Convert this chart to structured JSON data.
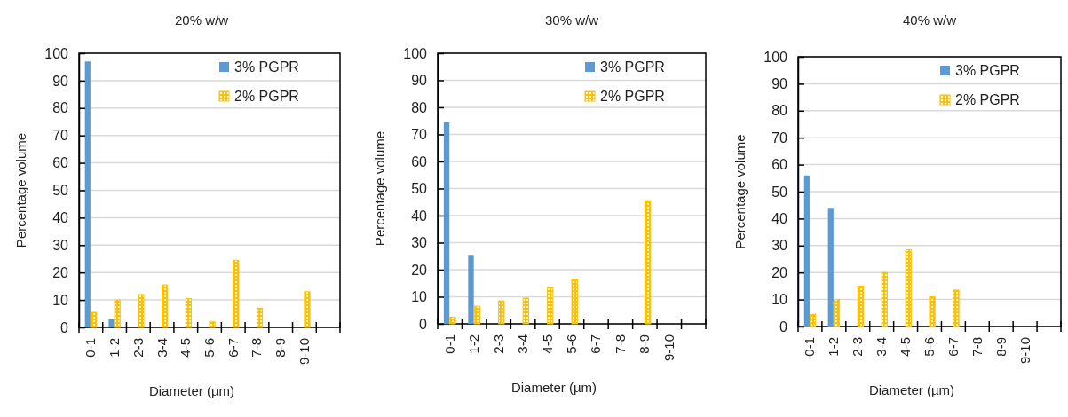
{
  "chart_data": [
    {
      "type": "bar",
      "title": "20% w/w",
      "xlabel": "Diameter (µm)",
      "ylabel": "Percentage volume",
      "categories": [
        "0-1",
        "1-2",
        "2-3",
        "3-4",
        "4-5",
        "5-6",
        "6-7",
        "7-8",
        "8-9",
        "9-10",
        null
      ],
      "series": [
        {
          "name": "3% PGPR",
          "color": "#5b9bd5",
          "values": [
            97,
            3,
            null,
            null,
            null,
            null,
            null,
            null,
            null,
            null,
            null
          ]
        },
        {
          "name": "2% PGPR",
          "color": "#ffc000",
          "values": [
            5.5,
            10,
            12,
            15.5,
            10.5,
            2,
            24.5,
            7,
            null,
            13,
            null
          ]
        }
      ],
      "ylim": [
        0,
        100
      ],
      "yticks": [
        0,
        10,
        20,
        30,
        40,
        50,
        60,
        70,
        80,
        90,
        100
      ],
      "grid": "y",
      "legend": "top right"
    },
    {
      "type": "bar",
      "title": "30% w/w",
      "xlabel": "Diameter (µm)",
      "ylabel": "Percentage volume",
      "categories": [
        "0-1",
        "1-2",
        "2-3",
        "3-4",
        "4-5",
        "5-6",
        "6-7",
        "7-8",
        "8-9",
        "9-10",
        null
      ],
      "series": [
        {
          "name": "3% PGPR",
          "color": "#5b9bd5",
          "values": [
            74.5,
            25.5,
            null,
            null,
            null,
            null,
            null,
            null,
            null,
            null,
            null
          ]
        },
        {
          "name": "2% PGPR",
          "color": "#ffc000",
          "values": [
            2.5,
            6.5,
            8.5,
            9.5,
            13.5,
            16.5,
            null,
            null,
            45.5,
            null,
            null
          ]
        }
      ],
      "ylim": [
        0,
        100
      ],
      "yticks": [
        0,
        10,
        20,
        30,
        40,
        50,
        60,
        70,
        80,
        90,
        100
      ],
      "grid": "y",
      "legend": "top right"
    },
    {
      "type": "bar",
      "title": "40% w/w",
      "xlabel": "Diameter (µm)",
      "ylabel": "Percentage volume",
      "categories": [
        "0-1",
        "1-2",
        "2-3",
        "3-4",
        "4-5",
        "5-6",
        "6-7",
        "7-8",
        "8-9",
        "9-10",
        null
      ],
      "series": [
        {
          "name": "3% PGPR",
          "color": "#5b9bd5",
          "values": [
            56,
            44,
            null,
            null,
            null,
            null,
            null,
            null,
            null,
            null,
            null
          ]
        },
        {
          "name": "2% PGPR",
          "color": "#ffc000",
          "values": [
            4.5,
            10,
            15,
            20,
            28.5,
            11,
            13.5,
            null,
            null,
            null,
            null
          ]
        }
      ],
      "ylim": [
        0,
        100
      ],
      "yticks": [
        0,
        10,
        20,
        30,
        40,
        50,
        60,
        70,
        80,
        90,
        100
      ],
      "grid": "y",
      "legend": "top right"
    }
  ]
}
